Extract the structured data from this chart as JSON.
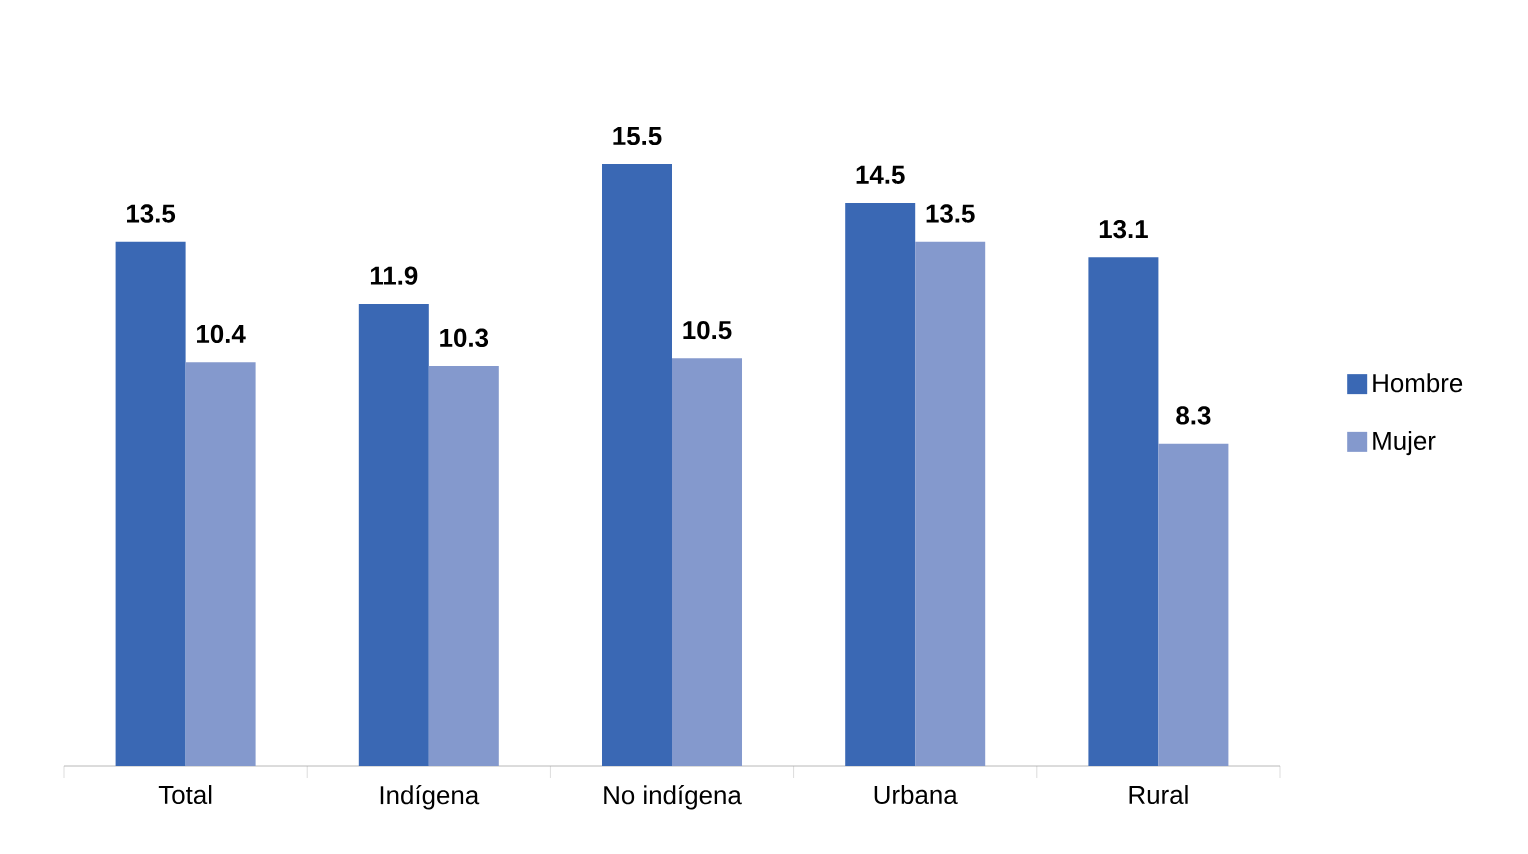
{
  "chart_data": {
    "type": "bar",
    "categories": [
      "Total",
      "Indígena",
      "No indígena",
      "Urbana",
      "Rural"
    ],
    "series": [
      {
        "name": "Hombre",
        "color": "#3a68b4",
        "values": [
          13.5,
          11.9,
          15.5,
          14.5,
          13.1
        ]
      },
      {
        "name": "Mujer",
        "color": "#8499cd",
        "values": [
          10.4,
          10.3,
          10.5,
          13.5,
          8.3
        ]
      }
    ],
    "data_labels": true,
    "legend": "right"
  }
}
